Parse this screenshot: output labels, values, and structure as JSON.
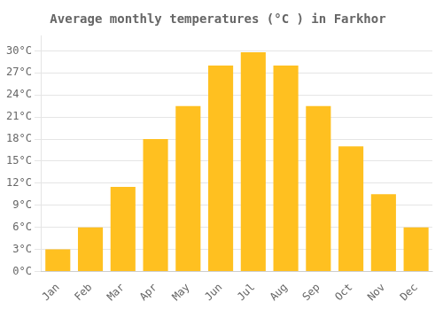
{
  "chart_data": {
    "type": "bar",
    "title": "Average monthly temperatures (°C ) in Farkhor",
    "categories": [
      "Jan",
      "Feb",
      "Mar",
      "Apr",
      "May",
      "Jun",
      "Jul",
      "Aug",
      "Sep",
      "Oct",
      "Nov",
      "Dec"
    ],
    "values": [
      3,
      6,
      11.5,
      18,
      22.5,
      28,
      29.8,
      28,
      22.5,
      17,
      10.5,
      6
    ],
    "color": "#FFC020",
    "ylim": [
      0,
      32
    ],
    "yticks": [
      {
        "value": 0,
        "label": "0°C"
      },
      {
        "value": 3,
        "label": "3°C"
      },
      {
        "value": 6,
        "label": "6°C"
      },
      {
        "value": 9,
        "label": "9°C"
      },
      {
        "value": 12,
        "label": "12°C"
      },
      {
        "value": 15,
        "label": "15°C"
      },
      {
        "value": 18,
        "label": "18°C"
      },
      {
        "value": 21,
        "label": "21°C"
      },
      {
        "value": 24,
        "label": "24°C"
      },
      {
        "value": 27,
        "label": "27°C"
      },
      {
        "value": 30,
        "label": "30°C"
      }
    ],
    "grid": true
  }
}
